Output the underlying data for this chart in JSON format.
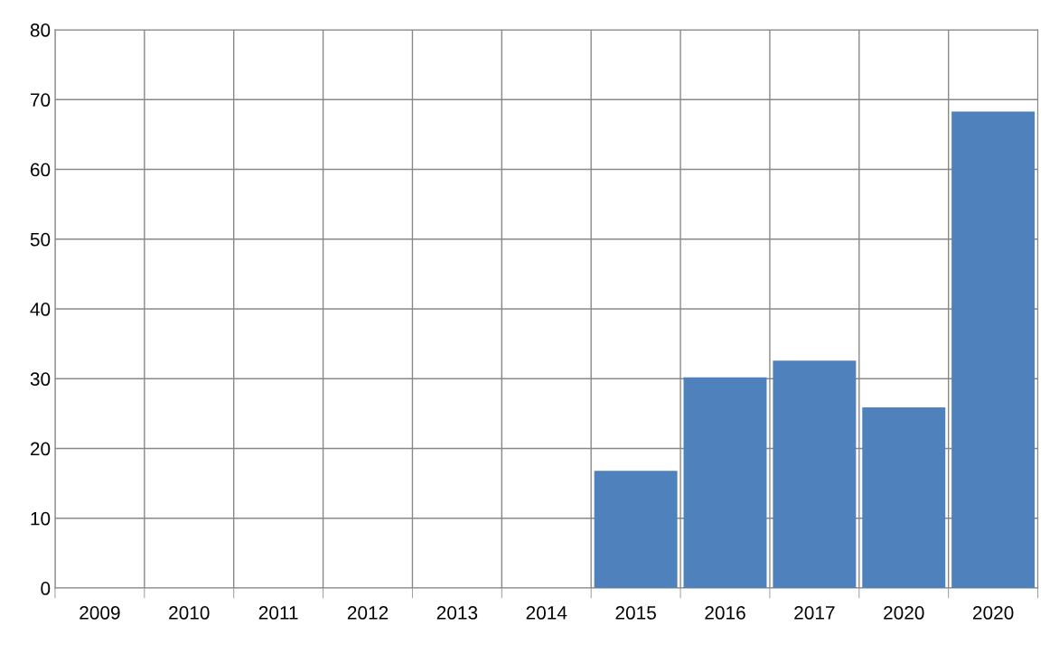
{
  "chart_data": {
    "type": "bar",
    "categories": [
      "2009",
      "2010",
      "2011",
      "2012",
      "2013",
      "2014",
      "2015",
      "2016",
      "2017",
      "2020",
      "2020"
    ],
    "values": [
      null,
      null,
      null,
      null,
      null,
      null,
      16.8,
      30.2,
      32.6,
      25.9,
      68.3
    ],
    "color": "#4f81bd",
    "ylim": [
      0,
      80
    ],
    "yticks": [
      0,
      10,
      20,
      30,
      40,
      50,
      60,
      70,
      80
    ],
    "grid": true,
    "legend": false
  }
}
